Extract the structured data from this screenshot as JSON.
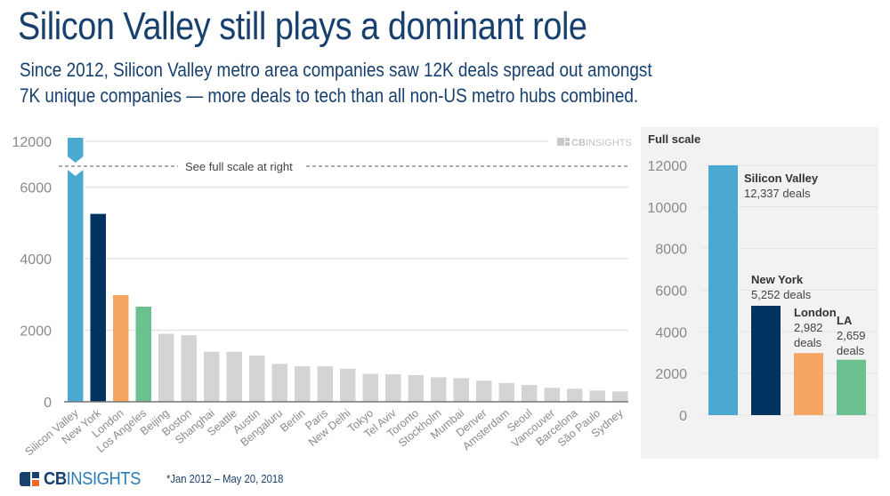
{
  "header": {
    "title": "Silicon Valley still plays a dominant role",
    "subtitle_lines": [
      "Since 2012, Silicon Valley metro area companies saw 12K deals spread out amongst",
      "7K unique companies — more deals to tech than all non-US metro hubs combined."
    ]
  },
  "colors": {
    "title": "#17406e",
    "silicon_valley": "#4ba8d0",
    "new_york": "#00335f",
    "london": "#f6a660",
    "los_angeles": "#6cc08f",
    "other": "#d5d4d5",
    "axis_text": "#8a8a8a",
    "panel_bg": "#f2f2f2"
  },
  "watermark": {
    "brand_bold": "CB",
    "brand_light": "INSIGHTS"
  },
  "chart_data": [
    {
      "type": "bar",
      "title": "",
      "xlabel": "",
      "ylabel": "",
      "axis_break": true,
      "break_note": "See full scale at right",
      "yticks": [
        0,
        2000,
        4000,
        6000,
        12000
      ],
      "ylim": [
        0,
        12000
      ],
      "grid": true,
      "categories": [
        "Silicon Valley",
        "New York",
        "London",
        "Los Angeles",
        "Beijing",
        "Boston",
        "Shanghai",
        "Seattle",
        "Austin",
        "Bengaluru",
        "Berlin",
        "Paris",
        "New Delhi",
        "Tokyo",
        "Tel Aviv",
        "Toronto",
        "Stockholm",
        "Mumbai",
        "Denver",
        "Amsterdam",
        "Seoul",
        "Vancouver",
        "Barcelona",
        "São Paulo",
        "Sydney"
      ],
      "values": [
        12337,
        5252,
        2982,
        2659,
        1900,
        1860,
        1400,
        1400,
        1290,
        1060,
        990,
        990,
        925,
        780,
        770,
        745,
        685,
        660,
        590,
        525,
        470,
        390,
        365,
        315,
        290
      ],
      "highlight_keys": [
        "silicon_valley",
        "new_york",
        "london",
        "los_angeles"
      ]
    },
    {
      "type": "bar",
      "title": "Full scale",
      "xlabel": "",
      "ylabel": "",
      "yticks": [
        0,
        2000,
        4000,
        6000,
        8000,
        10000,
        12000
      ],
      "ylim": [
        0,
        12000
      ],
      "grid": true,
      "categories": [
        "Silicon Valley",
        "New York",
        "London",
        "LA"
      ],
      "values": [
        12337,
        5252,
        2982,
        2659
      ],
      "labels": [
        {
          "name": "Silicon Valley",
          "lines": [
            "12,337 deals"
          ]
        },
        {
          "name": "New York",
          "lines": [
            "5,252 deals"
          ]
        },
        {
          "name": "London",
          "lines": [
            "2,982",
            "deals"
          ]
        },
        {
          "name": "LA",
          "lines": [
            "2,659",
            "deals"
          ]
        }
      ]
    }
  ],
  "footer": {
    "logo_bold": "CB",
    "logo_light": "INSIGHTS",
    "footnote": "*Jan 2012 – May 20, 2018"
  }
}
